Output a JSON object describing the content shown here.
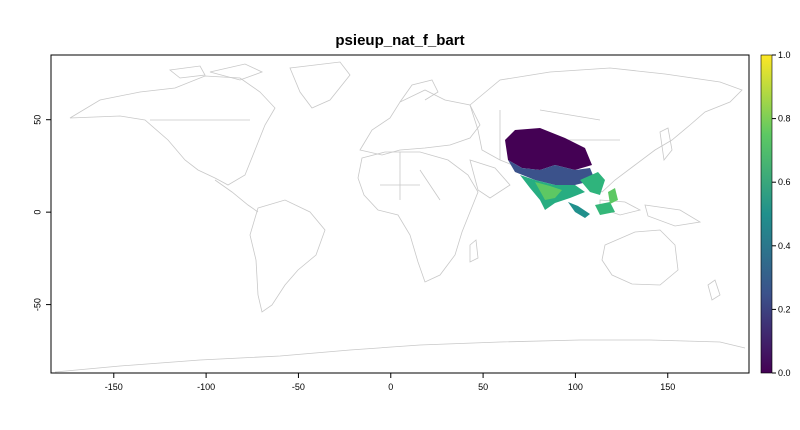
{
  "map": {
    "title": "psieup_nat_f_bart",
    "x_ticks": [
      "-150",
      "-100",
      "-50",
      "0",
      "50",
      "100",
      "150"
    ],
    "x_tick_values": [
      -150,
      -100,
      -50,
      0,
      50,
      100,
      150
    ],
    "y_ticks": [
      "50",
      "0",
      "-50"
    ],
    "y_tick_values": [
      50,
      0,
      -50
    ],
    "xlim": [
      -184,
      194
    ],
    "ylim": [
      -87,
      85
    ],
    "legend": {
      "labels": [
        "1.0",
        "0.8",
        "0.6",
        "0.4",
        "0.2",
        "0.0"
      ],
      "values": [
        1.0,
        0.8,
        0.6,
        0.4,
        0.2,
        0.0
      ],
      "range": [
        0,
        1
      ],
      "palette": "viridis",
      "colors": [
        "#440154",
        "#3b528b",
        "#21908c",
        "#5dc863",
        "#fde725"
      ]
    },
    "border_color": "#c8c8c8",
    "raster_extent": {
      "lon": [
        59,
        122
      ],
      "lat": [
        -10,
        46
      ]
    }
  }
}
